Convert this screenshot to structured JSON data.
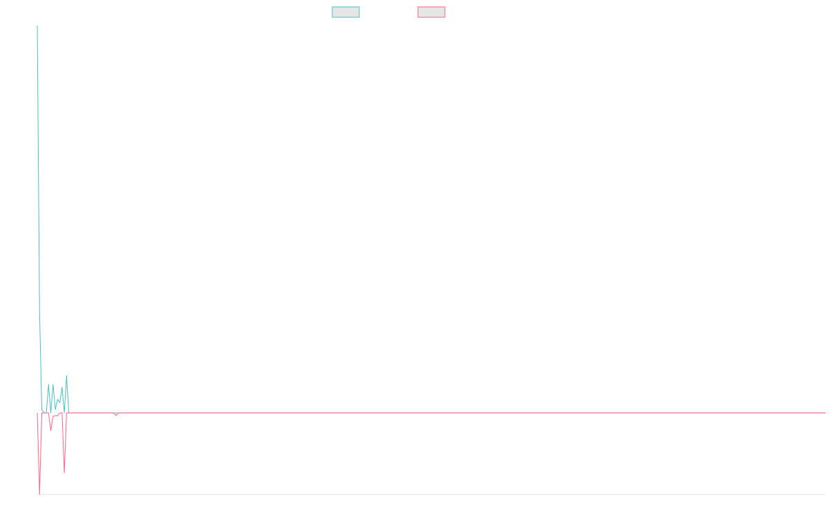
{
  "chart_data": {
    "type": "line",
    "title": "",
    "xlabel": "",
    "ylabel": "",
    "legend_position": "top-center",
    "grid": false,
    "x": [
      0,
      1,
      2,
      3,
      4,
      5,
      6,
      7,
      8,
      9,
      10,
      11,
      12,
      13,
      14,
      15,
      16,
      17,
      18,
      19,
      20,
      21,
      22,
      23,
      24,
      25,
      26,
      27,
      28,
      29,
      30,
      31,
      32,
      33,
      34,
      35,
      36,
      37,
      38,
      39,
      40,
      41,
      42,
      43,
      44,
      45,
      46,
      47,
      48,
      49,
      50
    ],
    "xlim": [
      0,
      350
    ],
    "ylim": [
      -120,
      570
    ],
    "series": [
      {
        "name": "",
        "color": "#4bc0c0",
        "fill": "#e6e6e6",
        "values": [
          570,
          150,
          5,
          0,
          0,
          42,
          0,
          42,
          5,
          20,
          15,
          38,
          0,
          55,
          0,
          0,
          0,
          0,
          0,
          0,
          0,
          0,
          0,
          0,
          0,
          0,
          0,
          0,
          0,
          0,
          0,
          0,
          0,
          0,
          0,
          0,
          0,
          0,
          0,
          0,
          0,
          0,
          0,
          0,
          0,
          0,
          0,
          0,
          0,
          0,
          0
        ]
      },
      {
        "name": "",
        "color": "#ff6384",
        "fill": "#e6e6e6",
        "values": [
          0,
          -120,
          0,
          0,
          0,
          0,
          -26,
          -5,
          -4,
          -4,
          0,
          0,
          -88,
          0,
          0,
          0,
          0,
          0,
          0,
          0,
          0,
          0,
          0,
          0,
          0,
          0,
          0,
          0,
          0,
          0,
          0,
          0,
          0,
          0,
          0,
          -4,
          0,
          0,
          0,
          0,
          0,
          0,
          0,
          0,
          0,
          0,
          0,
          0,
          0,
          0,
          0
        ]
      }
    ]
  }
}
